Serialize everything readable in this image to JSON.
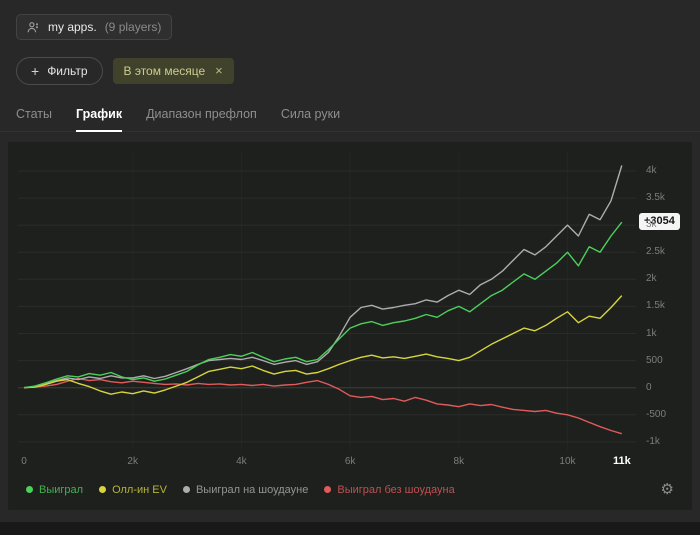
{
  "header": {
    "chip": {
      "title": "my apps.",
      "subtitle": "(9 players)"
    }
  },
  "icons": {
    "plus": "+",
    "close": "×",
    "gear": "⚙"
  },
  "filters": {
    "add_label": "Фильтр",
    "active_filter": "В этом месяце",
    "tag_colors": {
      "bg": "#41422c",
      "text": "#cbcc8f"
    }
  },
  "tabs": [
    {
      "id": "stats",
      "label": "Статы",
      "active": false
    },
    {
      "id": "graph",
      "label": "График",
      "active": true
    },
    {
      "id": "preflop-range",
      "label": "Диапазон префлоп",
      "active": false
    },
    {
      "id": "hand-strength",
      "label": "Сила руки",
      "active": false
    }
  ],
  "chart_data": {
    "type": "line",
    "x_step": 0.2,
    "x_units": "thousands of hands",
    "xlim": [
      0,
      11.15
    ],
    "ylim": [
      -1150,
      4350
    ],
    "grid": "horizontal",
    "legend_position": "bottom",
    "x_ticks": [
      {
        "v": 0,
        "label": "0"
      },
      {
        "v": 2,
        "label": "2k"
      },
      {
        "v": 4,
        "label": "4k"
      },
      {
        "v": 6,
        "label": "6k"
      },
      {
        "v": 8,
        "label": "8k"
      },
      {
        "v": 10,
        "label": "10k"
      }
    ],
    "current_hands_label": "11k",
    "current_hands_v": 11,
    "y_ticks": [
      {
        "v": 4000,
        "label": "4k"
      },
      {
        "v": 3500,
        "label": "3.5k"
      },
      {
        "v": 3000,
        "label": "3k"
      },
      {
        "v": 2500,
        "label": "2.5k"
      },
      {
        "v": 2000,
        "label": "2k"
      },
      {
        "v": 1500,
        "label": "1.5k"
      },
      {
        "v": 1000,
        "label": "1k"
      },
      {
        "v": 500,
        "label": "500"
      },
      {
        "v": 0,
        "label": "0"
      },
      {
        "v": -500,
        "label": "-500"
      },
      {
        "v": -1000,
        "label": "-1k"
      }
    ],
    "badge": {
      "label": "+3054",
      "value": 3054,
      "series": "Выиграл",
      "bg": "#f5f5f5"
    },
    "series": [
      {
        "id": "won",
        "name": "Выиграл",
        "color": "#4cd05a",
        "values": [
          0,
          30,
          90,
          160,
          220,
          200,
          260,
          230,
          280,
          200,
          150,
          180,
          120,
          160,
          230,
          300,
          420,
          520,
          560,
          610,
          580,
          650,
          560,
          480,
          530,
          560,
          480,
          520,
          700,
          900,
          1100,
          1180,
          1220,
          1150,
          1200,
          1230,
          1280,
          1350,
          1300,
          1420,
          1500,
          1400,
          1550,
          1700,
          1800,
          1950,
          2100,
          2000,
          2150,
          2300,
          2500,
          2250,
          2600,
          2500,
          2800,
          3054
        ]
      },
      {
        "id": "all-in-ev",
        "name": "Олл-ин EV",
        "color": "#d6d53e",
        "values": [
          0,
          10,
          60,
          120,
          150,
          80,
          20,
          -60,
          -120,
          -80,
          -110,
          -60,
          -100,
          -40,
          30,
          100,
          200,
          300,
          340,
          380,
          350,
          400,
          320,
          250,
          300,
          320,
          250,
          280,
          350,
          430,
          500,
          560,
          600,
          550,
          570,
          540,
          580,
          620,
          570,
          540,
          500,
          560,
          680,
          800,
          900,
          1000,
          1100,
          1050,
          1150,
          1280,
          1400,
          1200,
          1320,
          1280,
          1480,
          1700
        ]
      },
      {
        "id": "won-at-showdown",
        "name": "Выиграл на шоудауне",
        "color": "#adadad",
        "values": [
          0,
          20,
          70,
          130,
          180,
          150,
          200,
          170,
          220,
          180,
          180,
          220,
          170,
          210,
          280,
          350,
          430,
          500,
          520,
          540,
          520,
          560,
          500,
          430,
          470,
          500,
          430,
          480,
          650,
          950,
          1300,
          1480,
          1520,
          1450,
          1480,
          1520,
          1550,
          1620,
          1580,
          1700,
          1800,
          1720,
          1900,
          2000,
          2150,
          2350,
          2550,
          2450,
          2600,
          2800,
          3000,
          2800,
          3200,
          3100,
          3450,
          4100
        ]
      },
      {
        "id": "won-without-showdown",
        "name": "Выиграл без шоудауна",
        "color": "#e05b5b",
        "values": [
          0,
          10,
          30,
          60,
          120,
          170,
          130,
          150,
          110,
          90,
          120,
          100,
          80,
          60,
          70,
          50,
          80,
          60,
          70,
          50,
          60,
          40,
          60,
          30,
          50,
          60,
          100,
          130,
          60,
          -30,
          -150,
          -180,
          -160,
          -220,
          -200,
          -250,
          -180,
          -230,
          -300,
          -320,
          -350,
          -300,
          -330,
          -310,
          -360,
          -400,
          -420,
          -440,
          -420,
          -470,
          -500,
          -560,
          -640,
          -720,
          -790,
          -850
        ]
      }
    ]
  }
}
